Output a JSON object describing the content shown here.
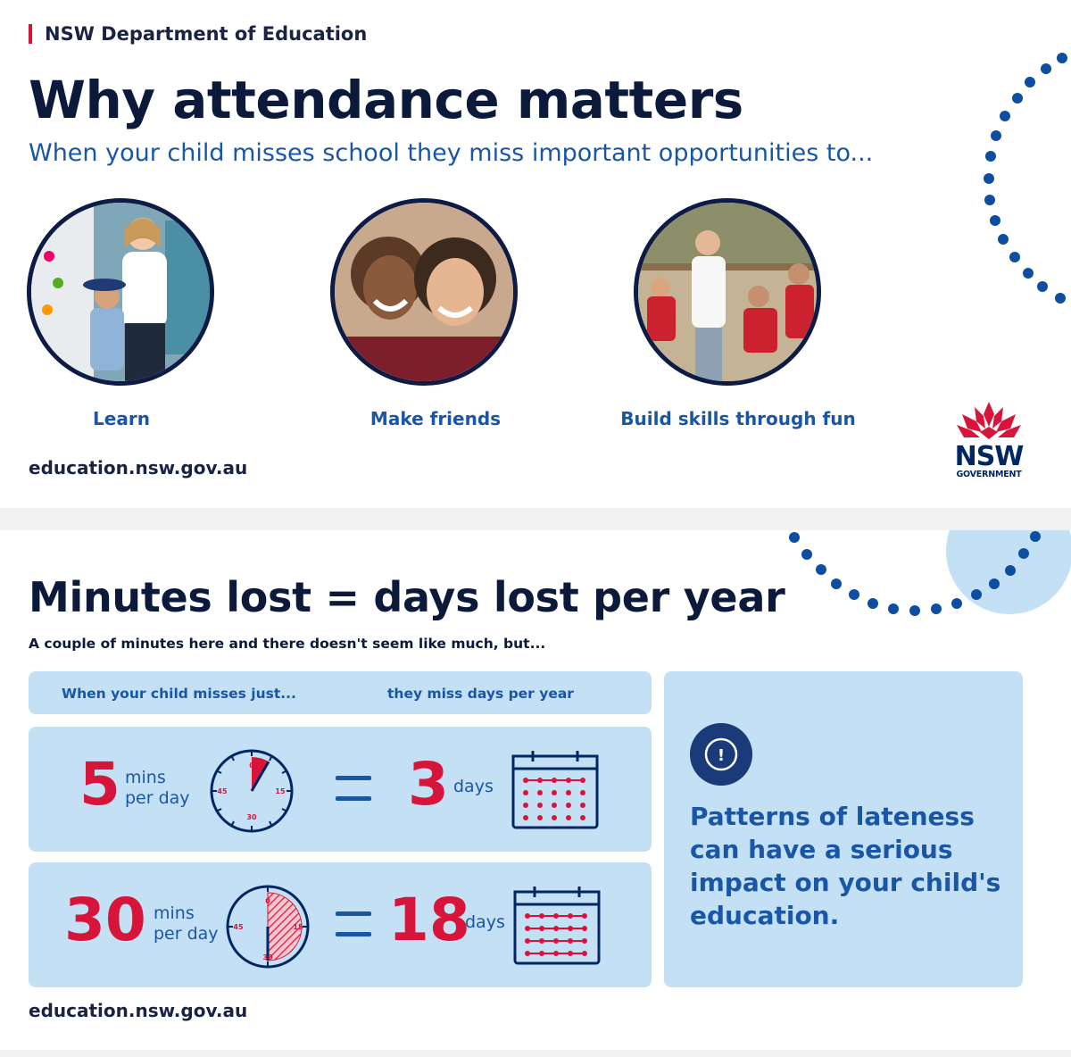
{
  "header": {
    "department": "NSW Department of Education",
    "title": "Why attendance matters",
    "subtitle": "When your child misses school they miss important opportunities to..."
  },
  "opportunities": [
    {
      "caption": "Learn"
    },
    {
      "caption": "Make friends"
    },
    {
      "caption": "Build skills through fun"
    }
  ],
  "url": "education.nsw.gov.au",
  "logo": {
    "name": "NSW",
    "subtitle": "GOVERNMENT"
  },
  "minutes_section": {
    "title": "Minutes lost = days lost per year",
    "subtitle": "A couple of minutes here and there doesn't seem like much, but...",
    "header_left": "When your child misses just...",
    "header_right": "they miss days per year",
    "rows": [
      {
        "minutes": "5",
        "min_unit_1": "mins",
        "min_unit_2": "per day",
        "days": "3",
        "days_unit": "days",
        "clock_fraction": 0.0833
      },
      {
        "minutes": "30",
        "min_unit_1": "mins",
        "min_unit_2": "per day",
        "days": "18",
        "days_unit": "days",
        "clock_fraction": 0.5
      }
    ],
    "clock_labels": {
      "top": "0",
      "right": "15",
      "bottom": "30",
      "left": "45"
    },
    "alert_symbol": "!",
    "alert_text": "Patterns of lateness can have a serious impact on your child's education."
  },
  "colors": {
    "navy": "#002664",
    "blue": "#1a56a6",
    "red": "#d7153a",
    "light_blue": "#c3e0f5"
  }
}
